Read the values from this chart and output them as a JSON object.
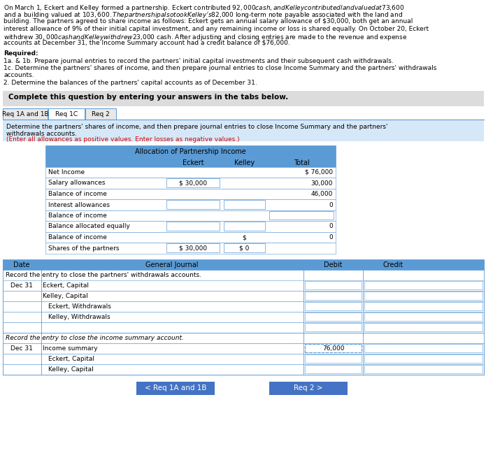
{
  "intro_lines": [
    "On March 1, Eckert and Kelley formed a partnership. Eckert contributed $92,000 cash, and Kelley contributed land valued at $73,600",
    "and a building valued at $103,600. The partnership also took Kelley's $82,000 long-term note payable associated with the land and",
    "building. The partners agreed to share income as follows: Eckert gets an annual salary allowance of $30,000, both get an annual",
    "interest allowance of 9% of their initial capital investment, and any remaining income or loss is shared equally. On October 20, Eckert",
    "withdrew $30,000 cash and Kelley withdrew $23,000 cash. After adjusting and closing entries are made to the revenue and expense",
    "accounts at December 31, the Income Summary account had a credit balance of $76,000."
  ],
  "req_lines": [
    [
      "Required:",
      true
    ],
    [
      "1a. & 1b. Prepare journal entries to record the partners' initial capital investments and their subsequent cash withdrawals.",
      false
    ],
    [
      "1c. Determine the partners' shares of income, and then prepare journal entries to close Income Summary and the partners' withdrawals",
      false
    ],
    [
      "accounts.",
      false
    ],
    [
      "2. Determine the balances of the partners' capital accounts as of December 31.",
      false
    ]
  ],
  "complete_text": "Complete this question by entering your answers in the tabs below.",
  "tabs": [
    "Req 1A and 1B",
    "Req 1C",
    "Req 2"
  ],
  "active_tab": 1,
  "instr_lines_black": [
    "Determine the partners' shares of income, and then prepare journal entries to close Income Summary and the partners'",
    "withdrawals accounts."
  ],
  "instr_line_red": "(Enter all allowances as positive values. Enter losses as negative values.)",
  "alloc_title": "Allocation of Partnership Income",
  "alloc_col_headers": [
    "Eckert",
    "Kelley",
    "Total"
  ],
  "alloc_rows": [
    {
      "label": "Net Income",
      "e": "",
      "k": "",
      "t": "$ 76,000",
      "e_box": false,
      "k_box": false,
      "t_box": false
    },
    {
      "label": "Salary allowances",
      "e": "$ 30,000",
      "k": "",
      "t": "30,000",
      "e_box": true,
      "k_box": false,
      "t_box": false
    },
    {
      "label": "Balance of income",
      "e": "",
      "k": "",
      "t": "46,000",
      "e_box": false,
      "k_box": false,
      "t_box": false
    },
    {
      "label": "Interest allowances",
      "e": "",
      "k": "",
      "t": "0",
      "e_box": true,
      "k_box": true,
      "t_box": false
    },
    {
      "label": "Balance of income",
      "e": "",
      "k": "",
      "t": "",
      "e_box": false,
      "k_box": false,
      "t_box": true
    },
    {
      "label": "Balance allocated equally",
      "e": "",
      "k": "",
      "t": "0",
      "e_box": true,
      "k_box": true,
      "t_box": false
    },
    {
      "label": "Balance of income",
      "e": "",
      "k": "$",
      "t": "0",
      "e_box": false,
      "k_box": false,
      "t_box": false
    },
    {
      "label": "Shares of the partners",
      "e": "$ 30,000",
      "k": "$ 0",
      "t": "",
      "e_box": true,
      "k_box": true,
      "t_box": false
    }
  ],
  "j_withdraw_label": "Record the entry to close the partners' withdrawals accounts.",
  "j_withdraw_rows": [
    {
      "date": "Dec 31",
      "acct": "Eckert, Capital",
      "ind": false
    },
    {
      "date": "",
      "acct": "Kelley, Capital",
      "ind": false
    },
    {
      "date": "",
      "acct": "Eckert, Withdrawals",
      "ind": true
    },
    {
      "date": "",
      "acct": "Kelley, Withdrawals",
      "ind": true
    },
    {
      "date": "",
      "acct": "",
      "ind": false
    }
  ],
  "j_income_label": "Record the entry to close the income summary account.",
  "j_income_rows": [
    {
      "date": "Dec 31",
      "acct": "Income summary",
      "ind": false,
      "debit": "76,000"
    },
    {
      "date": "",
      "acct": "Eckert, Capital",
      "ind": true,
      "debit": ""
    },
    {
      "date": "",
      "acct": "Kelley, Capital",
      "ind": true,
      "debit": ""
    }
  ],
  "nav_left": "< Req 1A and 1B",
  "nav_right": "Req 2 >",
  "c_blue_hdr": "#5B9BD5",
  "c_blue_light": "#D6E8F7",
  "c_gray_box": "#DCDCDC",
  "c_tab_off": "#E8E8E8",
  "c_white": "#FFFFFF",
  "c_border": "#5B9BD5",
  "c_nav_btn": "#4472C4",
  "c_red": "#CC0000",
  "c_black": "#000000"
}
